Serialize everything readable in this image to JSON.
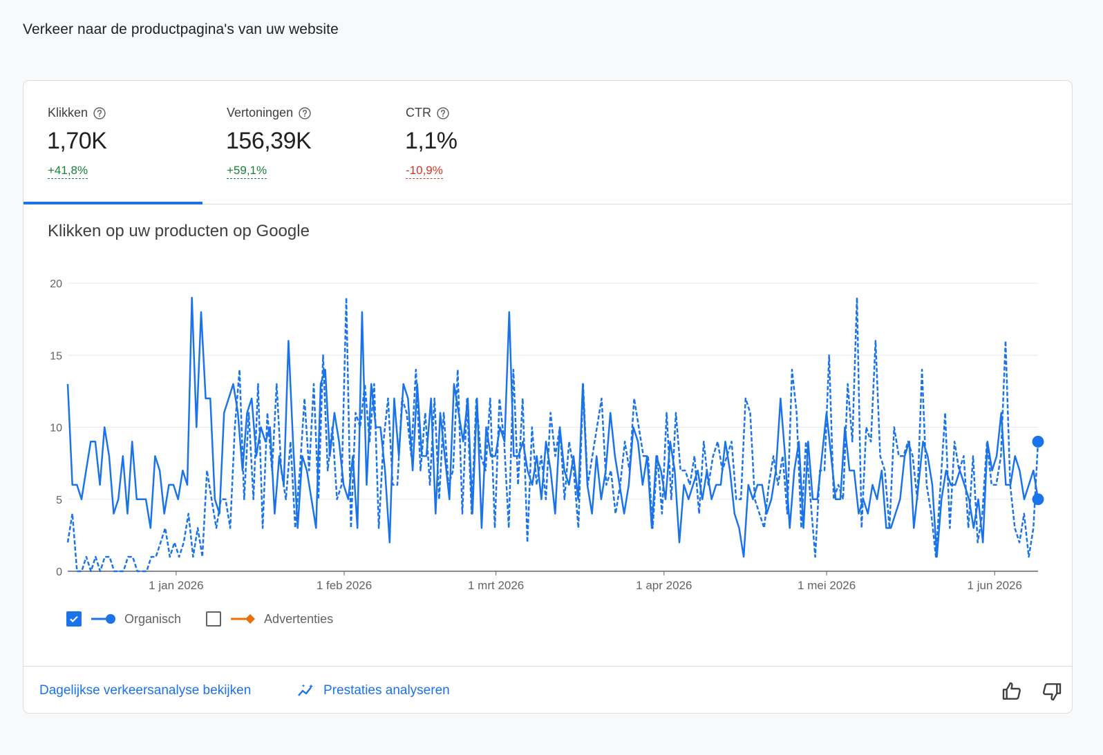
{
  "page": {
    "title": "Verkeer naar de productpagina's van uw website"
  },
  "metrics": [
    {
      "label": "Klikken",
      "value": "1,70K",
      "delta": "+41,8%",
      "trend": "up",
      "selected": true
    },
    {
      "label": "Vertoningen",
      "value": "156,39K",
      "delta": "+59,1%",
      "trend": "up",
      "selected": false
    },
    {
      "label": "CTR",
      "value": "1,1%",
      "delta": "-10,9%",
      "trend": "down",
      "selected": false
    }
  ],
  "chart": {
    "title": "Klikken op uw producten op Google"
  },
  "legend": {
    "organic": {
      "label": "Organisch",
      "checked": true,
      "color": "#1a73e8"
    },
    "ads": {
      "label": "Advertenties",
      "checked": false,
      "color": "#e8710a"
    }
  },
  "footer": {
    "daily_link": "Dagelijkse verkeersanalyse bekijken",
    "analyze_link": "Prestaties analyseren"
  },
  "chart_data": {
    "type": "line",
    "y_ticks": [
      "0",
      "5",
      "10",
      "15",
      "20"
    ],
    "ylim": [
      0,
      20
    ],
    "x_ticks": [
      {
        "label": "1 jan 2026",
        "date": "2026-01-01"
      },
      {
        "label": "1 feb 2026",
        "date": "2026-02-01"
      },
      {
        "label": "1 mrt 2026",
        "date": "2026-03-01"
      },
      {
        "label": "1 apr 2026",
        "date": "2026-04-01"
      },
      {
        "label": "1 mei 2026",
        "date": "2026-05-01"
      },
      {
        "label": "1 jun 2026",
        "date": "2026-06-01"
      }
    ],
    "x_range": [
      "2025-12-12",
      "2026-06-09"
    ],
    "grid": true,
    "series": [
      {
        "name": "Organisch",
        "style": "solid",
        "color": "#1a73e8",
        "values": [
          13,
          6,
          6,
          5,
          7,
          9,
          9,
          6,
          10,
          8,
          4,
          5,
          8,
          4,
          9,
          5,
          5,
          5,
          3,
          8,
          7,
          4,
          6,
          6,
          5,
          7,
          6,
          19,
          10,
          18,
          12,
          12,
          5,
          4,
          11,
          12,
          13,
          11,
          7,
          11,
          12,
          8,
          10,
          9,
          10,
          4,
          8,
          6,
          16,
          9,
          3,
          8,
          7,
          5,
          3,
          13,
          14,
          8,
          11,
          9,
          6,
          5,
          8,
          3,
          18,
          6,
          13,
          10,
          10,
          7,
          2,
          12,
          8,
          13,
          12,
          7,
          13,
          8,
          8,
          12,
          4,
          11,
          8,
          5,
          13,
          11,
          9,
          12,
          4,
          12,
          3,
          10,
          8,
          8,
          10,
          9,
          18,
          8,
          8,
          9,
          7,
          6,
          8,
          5,
          9,
          7,
          4,
          10,
          7,
          6,
          8,
          5,
          13,
          6,
          4,
          8,
          5,
          7,
          11,
          8,
          6,
          4,
          6,
          10,
          9,
          6,
          8,
          3,
          8,
          7,
          5,
          9,
          7,
          2,
          6,
          5,
          6,
          7,
          5,
          7,
          5,
          6,
          6,
          9,
          7,
          4,
          3,
          1,
          6,
          5,
          6,
          6,
          4,
          5,
          7,
          12,
          8,
          3,
          7,
          9,
          3,
          9,
          5,
          5,
          8,
          11,
          8,
          5,
          5,
          10,
          7,
          7,
          4,
          5,
          4,
          6,
          5,
          7,
          3,
          3,
          4,
          5,
          8,
          9,
          3,
          6,
          9,
          8,
          6,
          1,
          5,
          7,
          6,
          6,
          7,
          6,
          5,
          3,
          5,
          2,
          9,
          7,
          8,
          11,
          6,
          6,
          8,
          7,
          5,
          6,
          7,
          5
        ]
      },
      {
        "name": "Organisch (vorige periode)",
        "style": "dashed",
        "color": "#1a73e8",
        "values": [
          2,
          4,
          0,
          0,
          1,
          0,
          1,
          0,
          1,
          1,
          0,
          0,
          0,
          1,
          1,
          0,
          0,
          0,
          1,
          1,
          2,
          3,
          1,
          2,
          1,
          2,
          4,
          1,
          3,
          1,
          7,
          5,
          3,
          5,
          5,
          3,
          10,
          14,
          5,
          11,
          5,
          13,
          3,
          11,
          7,
          13,
          7,
          5,
          9,
          3,
          7,
          12,
          7,
          13,
          5,
          15,
          7,
          10,
          5,
          6,
          19,
          3,
          11,
          10,
          13,
          9,
          13,
          3,
          9,
          12,
          6,
          6,
          12,
          11,
          8,
          14,
          7,
          11,
          6,
          12,
          5,
          11,
          6,
          7,
          14,
          4,
          12,
          4,
          12,
          8,
          7,
          12,
          3,
          12,
          9,
          3,
          14,
          6,
          12,
          2,
          10,
          6,
          8,
          5,
          11,
          8,
          10,
          5,
          9,
          7,
          3,
          13,
          6,
          8,
          10,
          12,
          6,
          7,
          4,
          6,
          9,
          7,
          12,
          10,
          8,
          8,
          3,
          8,
          4,
          11,
          5,
          11,
          7,
          7,
          6,
          8,
          4,
          9,
          6,
          8,
          9,
          7,
          8,
          9,
          5,
          5,
          12,
          11,
          5,
          4,
          3,
          6,
          8,
          6,
          8,
          4,
          14,
          11,
          3,
          9,
          5,
          1,
          7,
          7,
          15,
          5,
          6,
          5,
          13,
          9,
          19,
          3,
          10,
          9,
          16,
          8,
          7,
          3,
          10,
          8,
          8,
          9,
          8,
          5,
          14,
          6,
          4,
          1,
          6,
          11,
          3,
          9,
          7,
          8,
          3,
          8,
          2,
          4,
          9,
          6,
          6,
          8,
          16,
          6,
          3,
          2,
          4,
          1,
          3,
          9
        ]
      }
    ],
    "end_markers": [
      9,
      5
    ]
  }
}
